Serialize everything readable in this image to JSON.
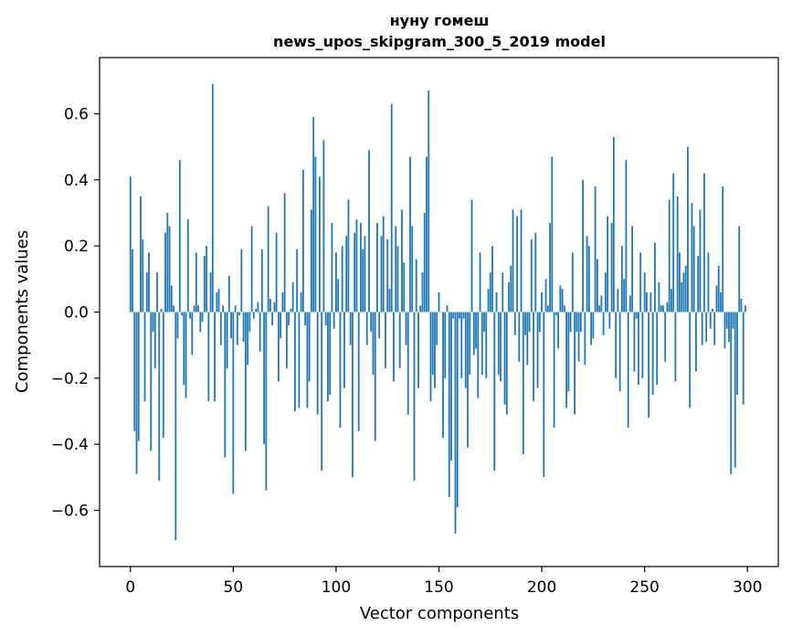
{
  "chart_data": {
    "type": "bar",
    "title": "нуну гомеш",
    "subtitle": "news_upos_skipgram_300_5_2019 model",
    "xlabel": "Vector components",
    "ylabel": "Components values",
    "xlim": [
      -15,
      315
    ],
    "ylim": [
      -0.77,
      0.77
    ],
    "xticks": [
      0,
      50,
      100,
      150,
      200,
      250,
      300
    ],
    "yticks": [
      -0.6,
      -0.4,
      -0.2,
      0.0,
      0.2,
      0.4,
      0.6
    ],
    "ytick_labels": [
      "−0.6",
      "−0.4",
      "−0.2",
      "0.0",
      "0.2",
      "0.4",
      "0.6"
    ],
    "grid": false,
    "bar_color": "#1f77b4",
    "values": [
      0.41,
      0.19,
      -0.36,
      -0.49,
      -0.39,
      0.35,
      0.22,
      -0.27,
      0.12,
      0.18,
      -0.42,
      -0.06,
      -0.17,
      0.12,
      -0.51,
      0.01,
      -0.38,
      0.24,
      0.3,
      0.26,
      0.08,
      0.02,
      -0.69,
      -0.08,
      0.46,
      -0.01,
      -0.22,
      -0.26,
      0.28,
      -0.02,
      -0.13,
      0.02,
      0.18,
      0.02,
      -0.06,
      -0.03,
      0.17,
      0.2,
      -0.27,
      0.12,
      0.69,
      -0.27,
      0.06,
      0.07,
      -0.1,
      0.02,
      -0.44,
      -0.17,
      0.11,
      -0.08,
      -0.55,
      0.02,
      -0.1,
      -0.01,
      0.19,
      -0.09,
      -0.42,
      -0.16,
      -0.06,
      0.26,
      -0.02,
      0.01,
      0.03,
      -0.12,
      0.19,
      -0.4,
      -0.54,
      0.32,
      0.04,
      -0.04,
      0.03,
      0.24,
      -0.21,
      -0.08,
      0.06,
      0.36,
      -0.17,
      -0.04,
      0.01,
      0.09,
      -0.3,
      0.19,
      -0.29,
      0.06,
      0.43,
      -0.04,
      -0.29,
      -0.21,
      0.31,
      0.59,
      0.47,
      -0.31,
      0.41,
      -0.48,
      0.52,
      -0.04,
      -0.27,
      -0.25,
      0.27,
      -0.05,
      0.18,
      0.1,
      -0.35,
      0.2,
      -0.23,
      0.23,
      0.34,
      -0.1,
      -0.5,
      0.24,
      0.28,
      -0.36,
      0.27,
      0.19,
      0.23,
      -0.1,
      0.49,
      -0.06,
      -0.19,
      -0.39,
      0.27,
      -0.08,
      0.23,
      0.29,
      -0.17,
      0.22,
      0.07,
      0.63,
      -0.21,
      0.26,
      0.2,
      -0.17,
      0.31,
      0.15,
      -0.1,
      -0.31,
      0.47,
      0.26,
      -0.51,
      0.16,
      -0.23,
      0.02,
      0.12,
      0.3,
      0.47,
      0.67,
      -0.27,
      -0.19,
      -0.23,
      -0.1,
      0.06,
      0.0,
      -0.38,
      -0.2,
      0.02,
      -0.56,
      -0.45,
      -0.02,
      -0.67,
      -0.59,
      -0.02,
      -0.2,
      -0.02,
      -0.23,
      -0.41,
      -0.19,
      0.34,
      -0.13,
      -0.11,
      -0.26,
      0.18,
      -0.19,
      -0.06,
      -0.2,
      0.07,
      0.12,
      0.2,
      -0.48,
      0.06,
      -0.19,
      -0.21,
      0.12,
      -0.28,
      -0.31,
      0.09,
      0.14,
      0.31,
      -0.07,
      0.29,
      -0.15,
      0.31,
      -0.43,
      -0.07,
      -0.16,
      -0.06,
      0.22,
      -0.27,
      0.24,
      -0.23,
      -0.06,
      0.06,
      -0.5,
      0.1,
      0.02,
      0.27,
      0.47,
      -0.35,
      -0.01,
      -0.11,
      0.08,
      0.07,
      0.02,
      -0.29,
      -0.24,
      -0.06,
      0.18,
      -0.31,
      -0.06,
      -0.15,
      -0.06,
      0.4,
      -0.16,
      0.23,
      0.2,
      -0.1,
      -0.08,
      0.38,
      0.16,
      0.02,
      0.05,
      -0.07,
      0.12,
      0.29,
      -0.05,
      0.27,
      0.53,
      -0.2,
      0.07,
      -0.24,
      0.2,
      0.1,
      0.46,
      -0.35,
      0.05,
      0.26,
      -0.18,
      -0.02,
      -0.22,
      0.18,
      -0.2,
      0.12,
      0.06,
      -0.32,
      0.06,
      -0.25,
      0.21,
      -0.22,
      0.09,
      0.02,
      0.02,
      -0.15,
      0.03,
      0.34,
      0.07,
      0.42,
      -0.21,
      0.35,
      0.18,
      0.09,
      0.12,
      0.14,
      0.5,
      -0.29,
      0.33,
      0.26,
      -0.18,
      0.17,
      0.31,
      -0.1,
      0.42,
      -0.09,
      0.18,
      -0.05,
      0.01,
      -0.1,
      0.08,
      0.14,
      0.06,
      0.38,
      -0.11,
      -0.05,
      -0.09,
      -0.49,
      -0.05,
      -0.47,
      -0.25,
      0.26,
      0.04,
      -0.28,
      0.02
    ]
  }
}
